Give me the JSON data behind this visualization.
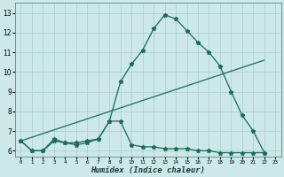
{
  "xlabel": "Humidex (Indice chaleur)",
  "ylabel": "",
  "bg_color": "#cce8e8",
  "grid_color": "#aacccc",
  "line_color": "#1a6b5a",
  "xlim": [
    -0.5,
    23.5
  ],
  "ylim": [
    5.7,
    13.5
  ],
  "line1_x": [
    0,
    1,
    2,
    3,
    4,
    5,
    6,
    7,
    8,
    9,
    10,
    11,
    12,
    13,
    14,
    15,
    16,
    17,
    18,
    19,
    20,
    21,
    22
  ],
  "line1_y": [
    6.5,
    6.0,
    6.0,
    6.6,
    6.4,
    6.4,
    6.5,
    6.6,
    7.5,
    9.5,
    10.4,
    11.1,
    12.2,
    12.9,
    12.7,
    12.1,
    11.5,
    11.0,
    10.3,
    9.0,
    7.8,
    7.0,
    5.9
  ],
  "line2_x": [
    0,
    1,
    2,
    3,
    4,
    5,
    6,
    7,
    8,
    9,
    10,
    11,
    12,
    13,
    14,
    15,
    16,
    17,
    18,
    19,
    20,
    21,
    22
  ],
  "line2_y": [
    6.5,
    6.0,
    6.0,
    6.5,
    6.4,
    6.3,
    6.4,
    6.6,
    7.5,
    7.5,
    6.3,
    6.2,
    6.2,
    6.1,
    6.1,
    6.1,
    6.0,
    6.0,
    5.9,
    5.9,
    5.9,
    5.9,
    5.9
  ],
  "line3_x": [
    0,
    22
  ],
  "line3_y": [
    6.5,
    10.6
  ],
  "yticks": [
    6,
    7,
    8,
    9,
    10,
    11,
    12,
    13
  ],
  "xticks": [
    0,
    1,
    2,
    3,
    4,
    5,
    6,
    7,
    8,
    9,
    10,
    11,
    12,
    13,
    14,
    15,
    16,
    17,
    18,
    19,
    20,
    21,
    22,
    23
  ]
}
